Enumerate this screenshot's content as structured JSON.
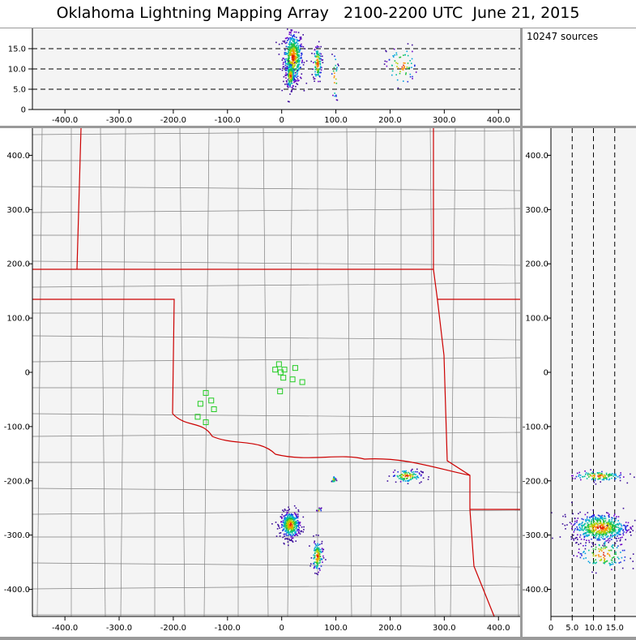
{
  "title": "Oklahoma Lightning Mapping Array   2100-2200 UTC  June 21, 2015",
  "source_count": "10247 sources",
  "colors": {
    "background": "#f4f4f4",
    "state_border": "#cc0000",
    "county_lines": "#808080",
    "stations": "#22cc22",
    "frame": "#9a9a9a"
  },
  "chart_data": [
    {
      "panel": "altitude-vs-east-west",
      "type": "scatter",
      "xlim": [
        -460,
        440
      ],
      "ylim": [
        0,
        20
      ],
      "xticks": [
        -400,
        -300,
        -200,
        -100,
        0,
        100,
        200,
        300,
        400
      ],
      "xtick_labels": [
        "-400.0",
        "-300.0",
        "-200.0",
        "-100.0",
        "0",
        "100.0",
        "200.0",
        "300.0",
        "400.0"
      ],
      "yticks": [
        0,
        5,
        10,
        15
      ],
      "ytick_labels": [
        "0",
        "5.0",
        "10.0",
        "15.0"
      ],
      "dashed_lines": [
        5,
        10,
        15
      ],
      "clusters": [
        {
          "x": 20,
          "y": 13,
          "sx": 9,
          "sy": 3.2,
          "n": 520
        },
        {
          "x": 15,
          "y": 8.5,
          "sx": 4,
          "sy": 1.6,
          "n": 140
        },
        {
          "x": 65,
          "y": 11.5,
          "sx": 4,
          "sy": 2.3,
          "n": 120
        },
        {
          "x": 97,
          "y": 8,
          "sx": 3,
          "sy": 3,
          "n": 25
        },
        {
          "x": 220,
          "y": 11,
          "sx": 14,
          "sy": 2.5,
          "n": 70
        }
      ]
    },
    {
      "panel": "plan-view",
      "type": "scatter",
      "xlim": [
        -460,
        440
      ],
      "ylim": [
        -450,
        450
      ],
      "xticks": [
        -400,
        -300,
        -200,
        -100,
        0,
        100,
        200,
        300,
        400
      ],
      "xtick_labels": [
        "-400.0",
        "-300.0",
        "-200.0",
        "-100.0",
        "0",
        "100.0",
        "200.0",
        "300.0",
        "400.0"
      ],
      "yticks": [
        400,
        300,
        200,
        100,
        0,
        -100,
        -200,
        -300,
        -400
      ],
      "ytick_labels": [
        "400.0",
        "300.0",
        "200.0",
        "100.0",
        "0",
        "-100.0",
        "-200.0",
        "-300.0",
        "-400.0"
      ],
      "stations": [
        [
          -5,
          15
        ],
        [
          -12,
          5
        ],
        [
          -2,
          0
        ],
        [
          5,
          5
        ],
        [
          25,
          8
        ],
        [
          3,
          -10
        ],
        [
          20,
          -13
        ],
        [
          38,
          -18
        ],
        [
          -3,
          -35
        ],
        [
          -140,
          -38
        ],
        [
          -150,
          -58
        ],
        [
          -130,
          -52
        ],
        [
          -125,
          -68
        ],
        [
          -155,
          -82
        ],
        [
          -140,
          -92
        ]
      ],
      "clusters": [
        {
          "x": 15,
          "y": -280,
          "sx": 9,
          "sy": 12,
          "n": 420
        },
        {
          "x": 65,
          "y": -338,
          "sx": 5,
          "sy": 15,
          "n": 130
        },
        {
          "x": 230,
          "y": -190,
          "sx": 14,
          "sy": 6,
          "n": 110
        },
        {
          "x": 95,
          "y": -197,
          "sx": 2,
          "sy": 3,
          "n": 20
        },
        {
          "x": 68,
          "y": -253,
          "sx": 2,
          "sy": 2,
          "n": 10
        }
      ]
    },
    {
      "panel": "north-south-vs-altitude",
      "type": "scatter",
      "xlim": [
        0,
        20
      ],
      "ylim": [
        -450,
        450
      ],
      "xticks": [
        0,
        5,
        10,
        15
      ],
      "xtick_labels": [
        "0",
        "5.0",
        "10.0",
        "15.0"
      ],
      "yticks": [
        400,
        300,
        200,
        100,
        0,
        -100,
        -200,
        -300,
        -400
      ],
      "ytick_labels": [
        "400.0",
        "300.0",
        "200.0",
        "100.0",
        "0",
        "-100.0",
        "-200.0",
        "-300.0",
        "-400.0"
      ],
      "dashed_lines": [
        5,
        10,
        15
      ],
      "clusters": [
        {
          "x": 11.5,
          "y": -285,
          "sx": 3.4,
          "sy": 13,
          "n": 560
        },
        {
          "x": 11,
          "y": -190,
          "sx": 3,
          "sy": 5,
          "n": 120
        },
        {
          "x": 12,
          "y": -335,
          "sx": 3,
          "sy": 15,
          "n": 130
        }
      ]
    }
  ]
}
